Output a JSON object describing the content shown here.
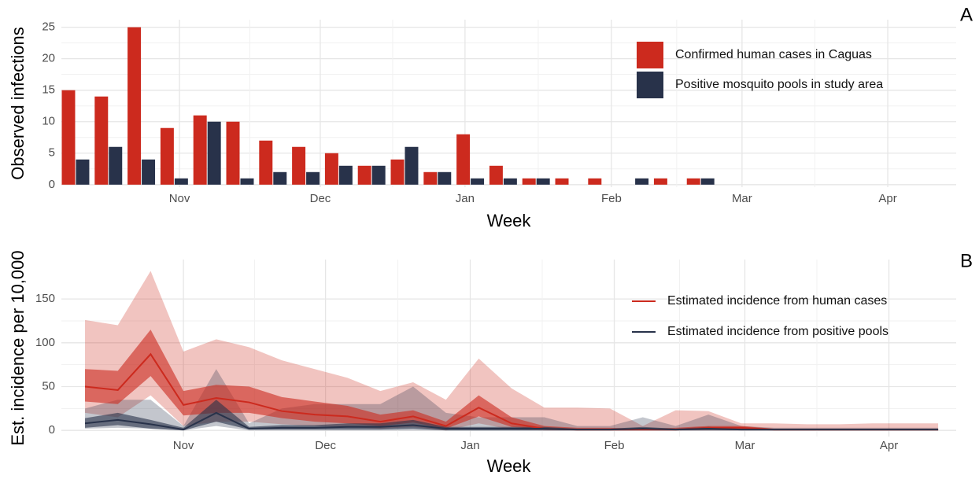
{
  "chart_data": [
    {
      "type": "bar",
      "panel_label": "A",
      "x": [
        1,
        2,
        3,
        4,
        5,
        6,
        7,
        8,
        9,
        10,
        11,
        12,
        13,
        14,
        15,
        16,
        17,
        18,
        19,
        20
      ],
      "series": [
        {
          "name": "Confirmed human cases in Caguas",
          "color": "#cc2a1e",
          "values": [
            15,
            14,
            25,
            9,
            11,
            10,
            7,
            6,
            5,
            3,
            4,
            2,
            8,
            3,
            1,
            1,
            1,
            0,
            1,
            1
          ]
        },
        {
          "name": "Positive mosquito pools in study area",
          "color": "#28324a",
          "values": [
            4,
            6,
            4,
            1,
            10,
            1,
            2,
            2,
            3,
            3,
            6,
            2,
            1,
            1,
            1,
            0,
            0,
            1,
            0,
            1
          ]
        }
      ],
      "xlabel": "Week",
      "ylabel": "Observed infections",
      "xlim": [
        0.57,
        27.77
      ],
      "xticks": [
        {
          "value": 4.16,
          "label": "Nov"
        },
        {
          "value": 8.44,
          "label": "Dec"
        },
        {
          "value": 12.84,
          "label": "Jan"
        },
        {
          "value": 17.29,
          "label": "Feb"
        },
        {
          "value": 21.26,
          "label": "Mar"
        },
        {
          "value": 25.69,
          "label": "Apr"
        }
      ],
      "ylim": [
        -0.4,
        26.2
      ],
      "yticks": [
        0,
        5,
        10,
        15,
        20,
        25
      ],
      "grid": true,
      "legend": "top-right"
    },
    {
      "type": "line",
      "panel_label": "B",
      "x": [
        1,
        2,
        3,
        4,
        5,
        6,
        7,
        8,
        9,
        10,
        11,
        12,
        13,
        14,
        15,
        16,
        17,
        18,
        19,
        20,
        21,
        22,
        23,
        24,
        25,
        26,
        27
      ],
      "series": [
        {
          "name": "Estimated incidence from human cases",
          "color": "#cc2a1e",
          "values": [
            50,
            46,
            87,
            29,
            37,
            32,
            22,
            18,
            16,
            10,
            16,
            5,
            26,
            8,
            2,
            1,
            1,
            1,
            1,
            3,
            3,
            1,
            1,
            1,
            1,
            1,
            1
          ],
          "ci50_lower": [
            33,
            30,
            62,
            17,
            20,
            20,
            14,
            10,
            8,
            5,
            9,
            2,
            16,
            4,
            1,
            0,
            0,
            0,
            0,
            1,
            1,
            0,
            0,
            0,
            0,
            0,
            0
          ],
          "ci50_upper": [
            70,
            68,
            115,
            45,
            52,
            50,
            38,
            33,
            28,
            18,
            23,
            10,
            40,
            15,
            5,
            3,
            3,
            2,
            3,
            5,
            5,
            2,
            2,
            2,
            2,
            2,
            2
          ],
          "ci95_lower": [
            20,
            15,
            40,
            5,
            10,
            10,
            7,
            5,
            4,
            2,
            4,
            0,
            8,
            1,
            0,
            0,
            0,
            0,
            0,
            0,
            0,
            0,
            0,
            0,
            0,
            0,
            0
          ],
          "ci95_upper": [
            126,
            120,
            182,
            90,
            104,
            95,
            80,
            70,
            60,
            45,
            55,
            35,
            82,
            48,
            26,
            26,
            25,
            5,
            23,
            22,
            8,
            8,
            7,
            7,
            8,
            8,
            8
          ]
        },
        {
          "name": "Estimated incidence from positive pools",
          "color": "#28324a",
          "values": [
            8,
            12,
            7,
            1,
            20,
            2,
            3,
            3,
            4,
            4,
            6,
            2,
            2,
            2,
            2,
            1,
            1,
            2,
            1,
            2,
            1,
            1,
            1,
            1,
            1,
            1,
            1
          ],
          "ci50_lower": [
            3,
            6,
            2,
            0,
            10,
            1,
            1,
            1,
            1,
            1,
            2,
            0,
            0,
            0,
            0,
            0,
            0,
            0,
            0,
            0,
            0,
            0,
            0,
            0,
            0,
            0,
            0
          ],
          "ci50_upper": [
            14,
            20,
            12,
            3,
            35,
            4,
            6,
            6,
            8,
            8,
            12,
            4,
            4,
            4,
            4,
            2,
            2,
            4,
            2,
            4,
            2,
            1,
            1,
            1,
            1,
            1,
            1
          ],
          "ci95_lower": [
            2,
            3,
            2,
            0,
            5,
            0,
            0,
            0,
            0,
            0,
            0,
            0,
            0,
            0,
            0,
            0,
            0,
            0,
            0,
            0,
            0,
            0,
            0,
            0,
            0,
            0,
            0
          ],
          "ci95_upper": [
            25,
            35,
            35,
            5,
            70,
            8,
            25,
            30,
            30,
            30,
            50,
            20,
            15,
            15,
            15,
            5,
            5,
            15,
            5,
            18,
            5,
            3,
            3,
            3,
            3,
            3,
            3
          ]
        }
      ],
      "xlabel": "Week",
      "ylabel": "Est. incidence per 10,000",
      "xlim": [
        0.28,
        27.55
      ],
      "xticks": [
        {
          "value": 4.0,
          "label": "Nov"
        },
        {
          "value": 8.33,
          "label": "Dec"
        },
        {
          "value": 12.74,
          "label": "Jan"
        },
        {
          "value": 17.13,
          "label": "Feb"
        },
        {
          "value": 21.11,
          "label": "Mar"
        },
        {
          "value": 25.5,
          "label": "Apr"
        }
      ],
      "ylim": [
        -7,
        195
      ],
      "yticks": [
        0,
        50,
        100,
        150
      ],
      "grid": true,
      "legend": "top-right"
    }
  ]
}
